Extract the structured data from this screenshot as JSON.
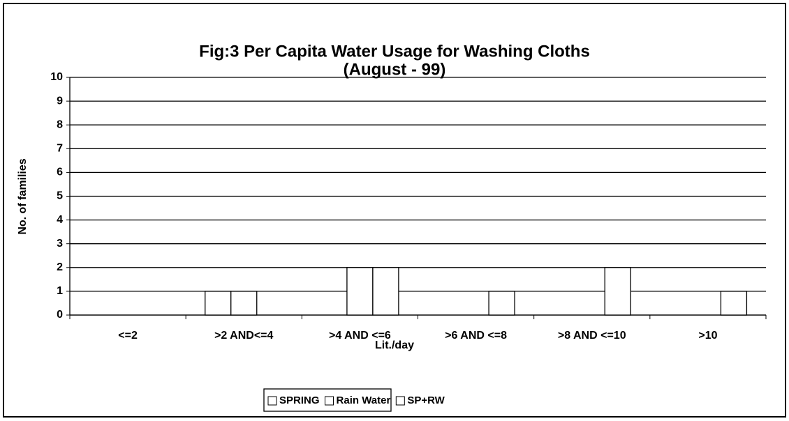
{
  "chart_data": {
    "type": "bar",
    "title": [
      "Fig:3  Per Capita Water Usage for Washing Cloths",
      "(August - 99)"
    ],
    "x_label": "Lit./day",
    "y_label": "No. of families",
    "categories": [
      "<=2",
      ">2 AND<=4",
      ">4 AND <=6",
      ">6 AND <=8",
      ">8 AND <=10",
      ">10"
    ],
    "series": [
      {
        "name": "SPRING",
        "color": "#ffffff",
        "values": [
          0,
          1,
          0,
          0,
          0,
          0
        ]
      },
      {
        "name": "Rain Water",
        "color": "#ffffff",
        "values": [
          0,
          1,
          2,
          0,
          0,
          0
        ]
      },
      {
        "name": "SP+RW",
        "color": "#ffffff",
        "values": [
          0,
          0,
          2,
          1,
          2,
          1
        ]
      }
    ],
    "ylim": [
      0,
      10
    ],
    "yticks": [
      0,
      1,
      2,
      3,
      4,
      5,
      6,
      7,
      8,
      9,
      10
    ],
    "grid": true,
    "legend": "bottom"
  }
}
